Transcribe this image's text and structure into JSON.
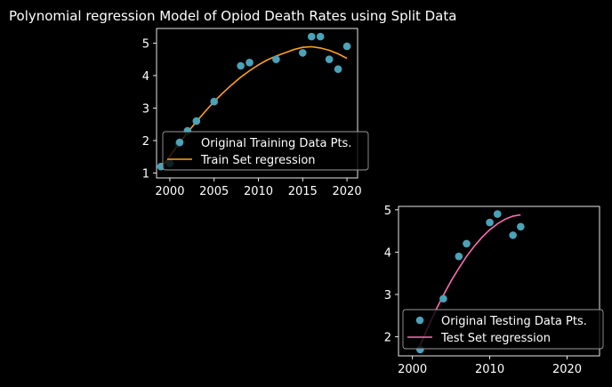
{
  "title": "Polynomial regression Model of Opiod Death Rates using Split Data",
  "colors": {
    "background": "#000000",
    "axes": "#ffffff",
    "points": "#4aa3b8",
    "train_line": "#ff9f1a",
    "test_line": "#ff6eb4",
    "legend_bg": "#000000",
    "legend_edge": "#9a9a9a"
  },
  "chart_data": [
    {
      "type": "scatter",
      "xlim": [
        1998.5,
        2021.2
      ],
      "ylim": [
        0.85,
        5.45
      ],
      "xticks": [
        2000,
        2005,
        2010,
        2015,
        2020
      ],
      "yticks": [
        1,
        2,
        3,
        4,
        5
      ],
      "xtick_labels": [
        "2000",
        "2005",
        "2010",
        "2015",
        "2020"
      ],
      "ytick_labels": [
        "1",
        "2",
        "3",
        "4",
        "5"
      ],
      "grid": false,
      "legend_position": "lower-right",
      "series": [
        {
          "name": "Original Training Data Pts.",
          "kind": "scatter",
          "x": [
            1999,
            2000,
            2001,
            2002,
            2003,
            2005,
            2008,
            2009,
            2012,
            2015,
            2016,
            2017,
            2018,
            2019,
            2020
          ],
          "y": [
            1.2,
            1.3,
            1.9,
            2.3,
            2.6,
            3.2,
            4.3,
            4.4,
            4.5,
            4.7,
            5.2,
            5.2,
            4.5,
            4.2,
            4.9
          ]
        },
        {
          "name": "Train Set regression",
          "kind": "line",
          "x": [
            1999,
            2000,
            2001,
            2002,
            2003,
            2004,
            2005,
            2006,
            2007,
            2008,
            2009,
            2010,
            2011,
            2012,
            2013,
            2014,
            2015,
            2016,
            2017,
            2018,
            2019,
            2020
          ],
          "y": [
            1.15,
            1.52,
            1.9,
            2.25,
            2.58,
            2.9,
            3.2,
            3.47,
            3.72,
            3.95,
            4.15,
            4.33,
            4.48,
            4.6,
            4.7,
            4.8,
            4.87,
            4.89,
            4.85,
            4.78,
            4.67,
            4.53
          ]
        }
      ]
    },
    {
      "type": "scatter",
      "xlim": [
        1998.2,
        2024.2
      ],
      "ylim": [
        1.55,
        5.08
      ],
      "xticks": [
        2000,
        2010,
        2020
      ],
      "yticks": [
        2,
        3,
        4,
        5
      ],
      "xtick_labels": [
        "2000",
        "2010",
        "2020"
      ],
      "ytick_labels": [
        "2",
        "3",
        "4",
        "5"
      ],
      "grid": false,
      "legend_position": "lower-right",
      "series": [
        {
          "name": "Original Testing Data Pts.",
          "kind": "scatter",
          "x": [
            2001,
            2004,
            2006,
            2007,
            2010,
            2011,
            2013,
            2014
          ],
          "y": [
            1.7,
            2.9,
            3.9,
            4.2,
            4.7,
            4.9,
            4.4,
            4.6
          ]
        },
        {
          "name": "Test Set regression",
          "kind": "line",
          "x": [
            2001,
            2002,
            2003,
            2004,
            2005,
            2006,
            2007,
            2008,
            2009,
            2010,
            2011,
            2012,
            2013,
            2014
          ],
          "y": [
            1.8,
            2.22,
            2.62,
            2.98,
            3.32,
            3.62,
            3.9,
            4.14,
            4.35,
            4.53,
            4.67,
            4.78,
            4.85,
            4.88
          ]
        }
      ]
    }
  ]
}
